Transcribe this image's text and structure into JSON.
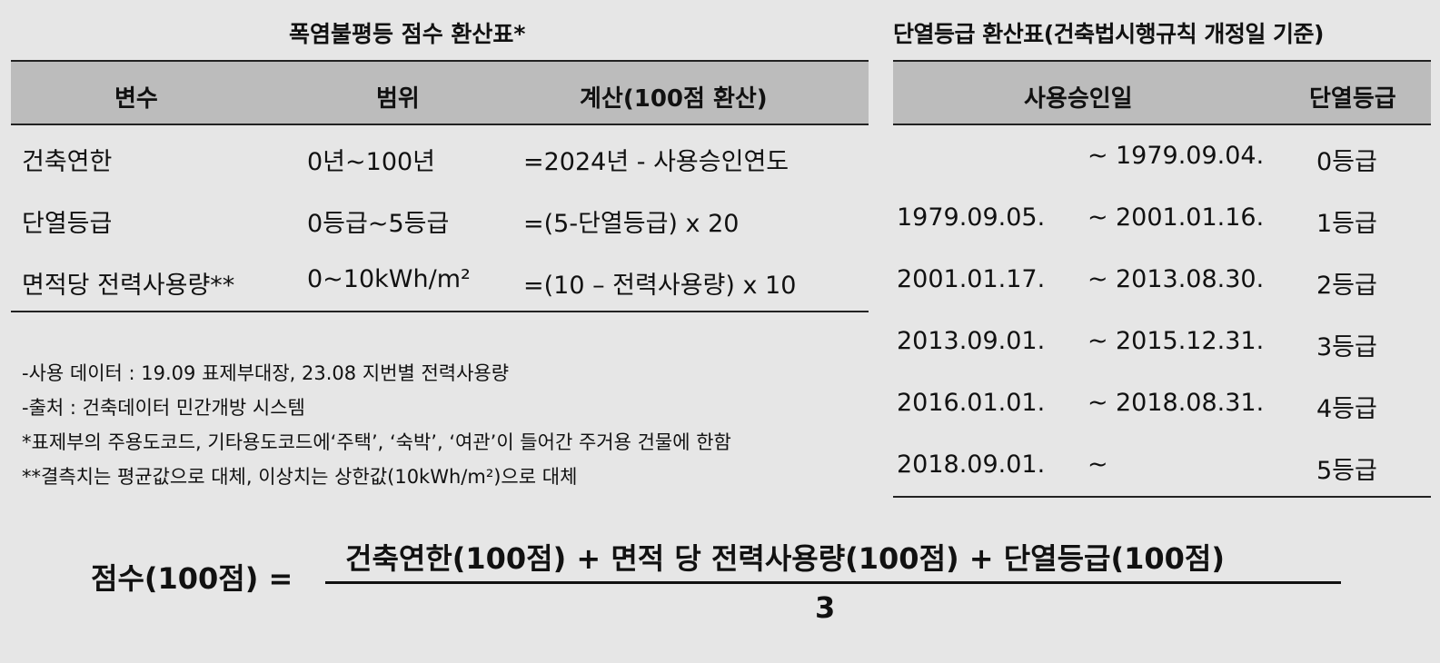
{
  "left_table": {
    "title": "폭염불평등 점수 환산표*",
    "headers": [
      "변수",
      "범위",
      "계산(100점 환산)"
    ],
    "rows": [
      [
        "건축연한",
        "0년~100년",
        "=2024년 - 사용승인연도"
      ],
      [
        "단열등급",
        "0등급~5등급",
        "=(5-단열등급) x 20"
      ],
      [
        "면적당 전력사용량**",
        "0~10kWh/m²",
        "=(10 – 전력사용량) x 10"
      ]
    ]
  },
  "notes": [
    "-사용 데이터 : 19.09 표제부대장, 23.08 지번별 전력사용량",
    "-출처 : 건축데이터 민간개방 시스템",
    "*표제부의 주용도코드, 기타용도코드에‘주택’, ‘숙박’, ‘여관’이 들어간 주거용 건물에 한함",
    "**결측치는 평균값으로 대체, 이상치는 상한값(10kWh/m²)으로 대체"
  ],
  "right_table": {
    "title": "단열등급 환산표(건축법시행규칙 개정일 기준)",
    "headers": [
      "사용승인일",
      "단열등급"
    ],
    "rows": [
      {
        "start": "",
        "sep": "~",
        "end": "1979.09.04.",
        "grade": "0등급"
      },
      {
        "start": "1979.09.05.",
        "sep": "~",
        "end": "2001.01.16.",
        "grade": "1등급"
      },
      {
        "start": "2001.01.17.",
        "sep": "~",
        "end": "2013.08.30.",
        "grade": "2등급"
      },
      {
        "start": "2013.09.01.",
        "sep": "~",
        "end": "2015.12.31.",
        "grade": "3등급"
      },
      {
        "start": "2016.01.01.",
        "sep": "~",
        "end": "2018.08.31.",
        "grade": "4등급"
      },
      {
        "start": "2018.09.01.",
        "sep": "~",
        "end": "",
        "grade": "5등급"
      }
    ]
  },
  "formula": {
    "lhs": "점수(100점) =",
    "numerator": "건축연한(100점) + 면적 당 전력사용량(100점) + 단열등급(100점)",
    "denominator": "3"
  }
}
